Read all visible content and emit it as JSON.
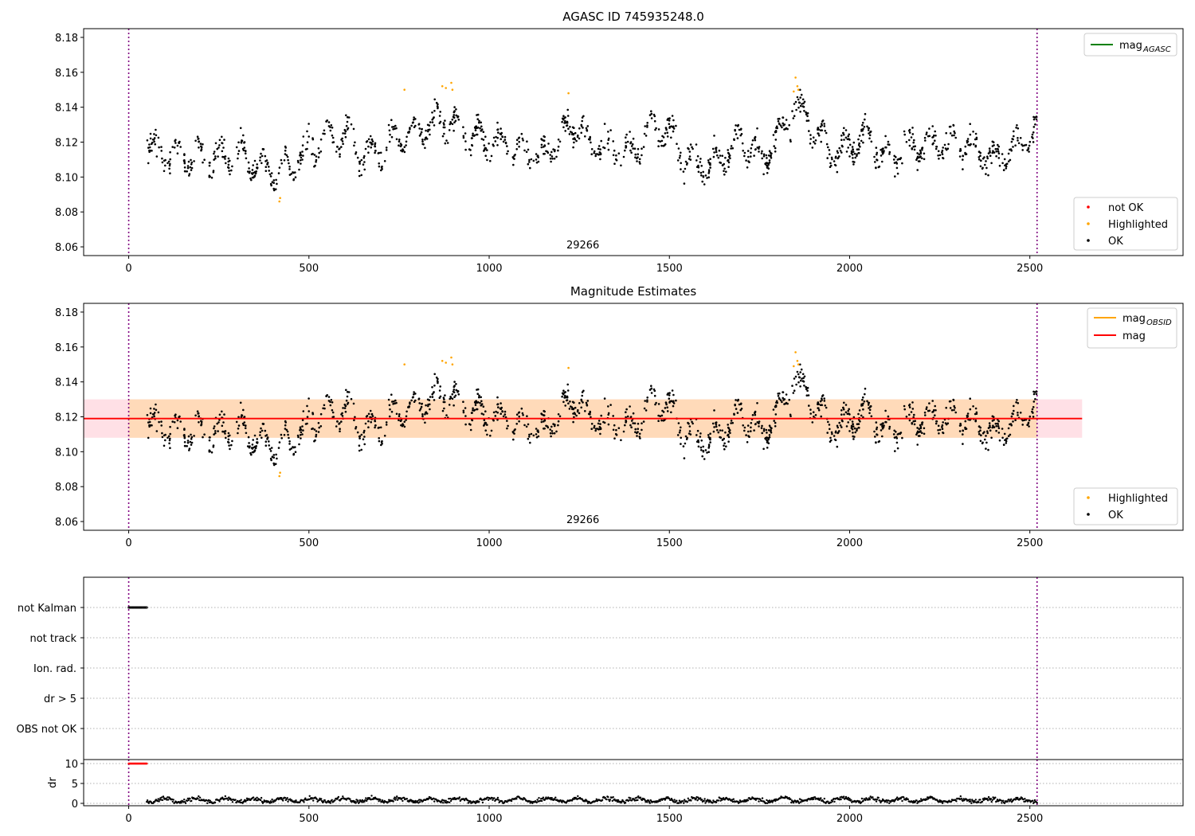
{
  "chart_data": [
    {
      "type": "scatter",
      "title": "AGASC ID 745935248.0",
      "obsid_label": "29266",
      "xlim": [
        -125,
        2925
      ],
      "ylim": [
        8.055,
        8.185
      ],
      "x_ticks": [
        0,
        500,
        1000,
        1500,
        2000,
        2500
      ],
      "y_ticks": [
        8.06,
        8.08,
        8.1,
        8.12,
        8.14,
        8.16,
        8.18
      ],
      "y_tick_labels": [
        "8.06",
        "8.08",
        "8.10",
        "8.12",
        "8.14",
        "8.16",
        "8.18"
      ],
      "vlines": [
        0,
        2520
      ],
      "legend_lines": [
        {
          "label": "mag",
          "sub": "AGASC",
          "color": "#008000"
        }
      ],
      "legend_points": [
        {
          "label": "not OK",
          "color": "#ff0000"
        },
        {
          "label": "Highlighted",
          "color": "#ffa500"
        },
        {
          "label": "OK",
          "color": "#000000"
        }
      ],
      "series": [
        {
          "name": "OK",
          "color": "#000000",
          "x_range": [
            50,
            2520
          ],
          "count": 1400,
          "level": 8.118
        },
        {
          "name": "Highlighted",
          "color": "#ffa500",
          "points": [
            [
              418,
              8.086
            ],
            [
              420,
              8.088
            ],
            [
              765,
              8.15
            ],
            [
              870,
              8.152
            ],
            [
              880,
              8.151
            ],
            [
              895,
              8.154
            ],
            [
              898,
              8.15
            ],
            [
              1220,
              8.148
            ],
            [
              1845,
              8.149
            ],
            [
              1850,
              8.157
            ],
            [
              1855,
              8.152
            ],
            [
              1858,
              8.15
            ]
          ]
        }
      ]
    },
    {
      "type": "scatter",
      "title": "Magnitude Estimates",
      "obsid_label": "29266",
      "xlim": [
        -125,
        2925
      ],
      "ylim": [
        8.055,
        8.185
      ],
      "x_ticks": [
        0,
        500,
        1000,
        1500,
        2000,
        2500
      ],
      "y_ticks": [
        8.06,
        8.08,
        8.1,
        8.12,
        8.14,
        8.16,
        8.18
      ],
      "y_tick_labels": [
        "8.06",
        "8.08",
        "8.10",
        "8.12",
        "8.14",
        "8.16",
        "8.18"
      ],
      "vlines": [
        0,
        2520
      ],
      "mag_obsid": {
        "value": 8.119,
        "band": [
          8.108,
          8.13
        ],
        "x_range": [
          -125,
          2645
        ],
        "color": "#ffa500"
      },
      "mag": {
        "value": 8.119,
        "band": [
          8.108,
          8.13
        ],
        "x_range": [
          -125,
          2645
        ],
        "color": "#ff0000"
      },
      "legend_lines": [
        {
          "label": "mag",
          "sub": "OBSID",
          "color": "#ffa500"
        },
        {
          "label": "mag",
          "sub": "",
          "color": "#ff0000"
        }
      ],
      "legend_points": [
        {
          "label": "Highlighted",
          "color": "#ffa500"
        },
        {
          "label": "OK",
          "color": "#000000"
        }
      ]
    },
    {
      "type": "scatter",
      "flag_labels": [
        "not Kalman",
        "not track",
        "Ion. rad.",
        "dr > 5",
        "OBS not OK"
      ],
      "flag_points": [
        {
          "flag": "not Kalman",
          "x_range": [
            0,
            50
          ]
        }
      ],
      "xlim": [
        -125,
        2925
      ],
      "vlines": [
        0,
        2520
      ]
    },
    {
      "type": "scatter",
      "ylabel": "dr",
      "ylim": [
        -0.6,
        11
      ],
      "y_ticks": [
        0,
        5,
        10
      ],
      "y_tick_labels": [
        "0",
        "5",
        "10"
      ],
      "x_ticks": [
        0,
        500,
        1000,
        1500,
        2000,
        2500
      ],
      "xlim": [
        -125,
        2925
      ],
      "vlines": [
        0,
        2520
      ],
      "series": [
        {
          "name": "dr",
          "color": "#000000",
          "x_range": [
            50,
            2520
          ],
          "level": 0.8
        },
        {
          "name": "dr clipped",
          "color": "#ff0000",
          "x_range": [
            0,
            50
          ],
          "value": 10
        }
      ]
    }
  ],
  "colors": {
    "ok": "#000000",
    "highlighted": "#ffa500",
    "not_ok": "#ff0000",
    "vline": "#800080",
    "band_obsid": "#ffdab9",
    "band_mag": "#ffe0e6"
  }
}
